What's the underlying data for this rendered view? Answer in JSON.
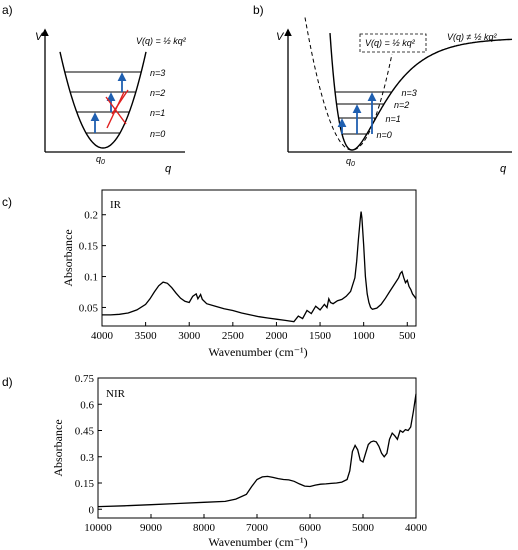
{
  "panel_a": {
    "label": "a)",
    "v_axis": "V",
    "q_axis": "q",
    "q0": "q",
    "q0_sub": "0",
    "formula": "V(q) = ½ kq²",
    "levels": [
      "n=0",
      "n=1",
      "n=2",
      "n=3"
    ]
  },
  "panel_b": {
    "label": "b)",
    "v_axis": "V",
    "q_axis": "q",
    "q0": "q",
    "q0_sub": "0",
    "formula_box": "V(q) = ½ kq²",
    "formula_right": "V(q) ≠ ½ kq²",
    "levels": [
      "n=0",
      "n=1",
      "n=2",
      "n=3"
    ]
  },
  "colors": {
    "arrow": "#1f5fb0",
    "forbidden": "#e02020",
    "line": "#000000"
  },
  "chart_data": [
    {
      "type": "line",
      "panel_label": "c)",
      "annotation": "IR",
      "xlabel": "Wavenumber (cm⁻¹)",
      "ylabel": "Absorbance",
      "xlim": [
        4000,
        400
      ],
      "ylim": [
        0.02,
        0.24
      ],
      "xticks": [
        4000,
        3500,
        3000,
        2500,
        2000,
        1500,
        1000,
        500
      ],
      "yticks": [
        0.05,
        0.1,
        0.15,
        0.2
      ],
      "ytick_labels": [
        "0.05",
        "0.1",
        "0.15",
        "0.2"
      ],
      "series": [
        {
          "x": [
            4000,
            3900,
            3800,
            3700,
            3600,
            3500,
            3450,
            3400,
            3350,
            3300,
            3250,
            3200,
            3150,
            3100,
            3050,
            3000,
            2960,
            2920,
            2900,
            2870,
            2850,
            2800,
            2700,
            2600,
            2500,
            2400,
            2300,
            2200,
            2100,
            2000,
            1900,
            1800,
            1750,
            1700,
            1650,
            1600,
            1550,
            1500,
            1450,
            1420,
            1400,
            1380,
            1350,
            1300,
            1250,
            1200,
            1150,
            1100,
            1080,
            1060,
            1040,
            1030,
            1020,
            1000,
            980,
            960,
            940,
            920,
            900,
            850,
            800,
            750,
            700,
            650,
            600,
            580,
            560,
            540,
            520,
            500,
            480,
            460,
            440,
            420,
            400
          ],
          "y": [
            0.038,
            0.038,
            0.039,
            0.041,
            0.046,
            0.055,
            0.064,
            0.075,
            0.085,
            0.091,
            0.089,
            0.082,
            0.073,
            0.065,
            0.06,
            0.058,
            0.068,
            0.072,
            0.064,
            0.071,
            0.063,
            0.056,
            0.052,
            0.048,
            0.045,
            0.041,
            0.038,
            0.035,
            0.033,
            0.031,
            0.029,
            0.027,
            0.036,
            0.032,
            0.045,
            0.04,
            0.052,
            0.046,
            0.055,
            0.05,
            0.064,
            0.058,
            0.056,
            0.061,
            0.063,
            0.068,
            0.076,
            0.098,
            0.125,
            0.16,
            0.192,
            0.205,
            0.195,
            0.15,
            0.1,
            0.072,
            0.058,
            0.05,
            0.047,
            0.049,
            0.055,
            0.065,
            0.076,
            0.087,
            0.098,
            0.105,
            0.108,
            0.098,
            0.09,
            0.094,
            0.084,
            0.079,
            0.072,
            0.068,
            0.064
          ]
        }
      ]
    },
    {
      "type": "line",
      "panel_label": "d)",
      "annotation": "NIR",
      "xlabel": "Wavenumber (cm⁻¹)",
      "ylabel": "Absorbance",
      "xlim": [
        10000,
        4000
      ],
      "ylim": [
        -0.05,
        0.75
      ],
      "xticks": [
        10000,
        9000,
        8000,
        7000,
        6000,
        5000,
        4000
      ],
      "yticks": [
        0,
        0.15,
        0.3,
        0.45,
        0.6,
        0.75
      ],
      "ytick_labels": [
        "0",
        "0.15",
        "0.3",
        "0.45",
        "0.6",
        "0.75"
      ],
      "series": [
        {
          "x": [
            10000,
            9500,
            9000,
            8500,
            8000,
            7600,
            7400,
            7200,
            7100,
            7000,
            6900,
            6800,
            6700,
            6600,
            6500,
            6400,
            6300,
            6200,
            6100,
            6000,
            5900,
            5800,
            5700,
            5600,
            5500,
            5400,
            5300,
            5250,
            5200,
            5150,
            5100,
            5050,
            5000,
            4950,
            4900,
            4850,
            4800,
            4750,
            4700,
            4650,
            4600,
            4550,
            4500,
            4450,
            4400,
            4350,
            4300,
            4250,
            4200,
            4150,
            4100,
            4050,
            4000
          ],
          "y": [
            0.015,
            0.02,
            0.026,
            0.033,
            0.04,
            0.045,
            0.058,
            0.085,
            0.13,
            0.17,
            0.185,
            0.188,
            0.182,
            0.175,
            0.17,
            0.168,
            0.16,
            0.145,
            0.132,
            0.13,
            0.138,
            0.143,
            0.145,
            0.148,
            0.15,
            0.155,
            0.17,
            0.22,
            0.33,
            0.365,
            0.34,
            0.28,
            0.27,
            0.32,
            0.37,
            0.385,
            0.39,
            0.385,
            0.36,
            0.32,
            0.3,
            0.32,
            0.4,
            0.435,
            0.42,
            0.4,
            0.45,
            0.44,
            0.455,
            0.45,
            0.47,
            0.56,
            0.66
          ]
        }
      ]
    }
  ]
}
